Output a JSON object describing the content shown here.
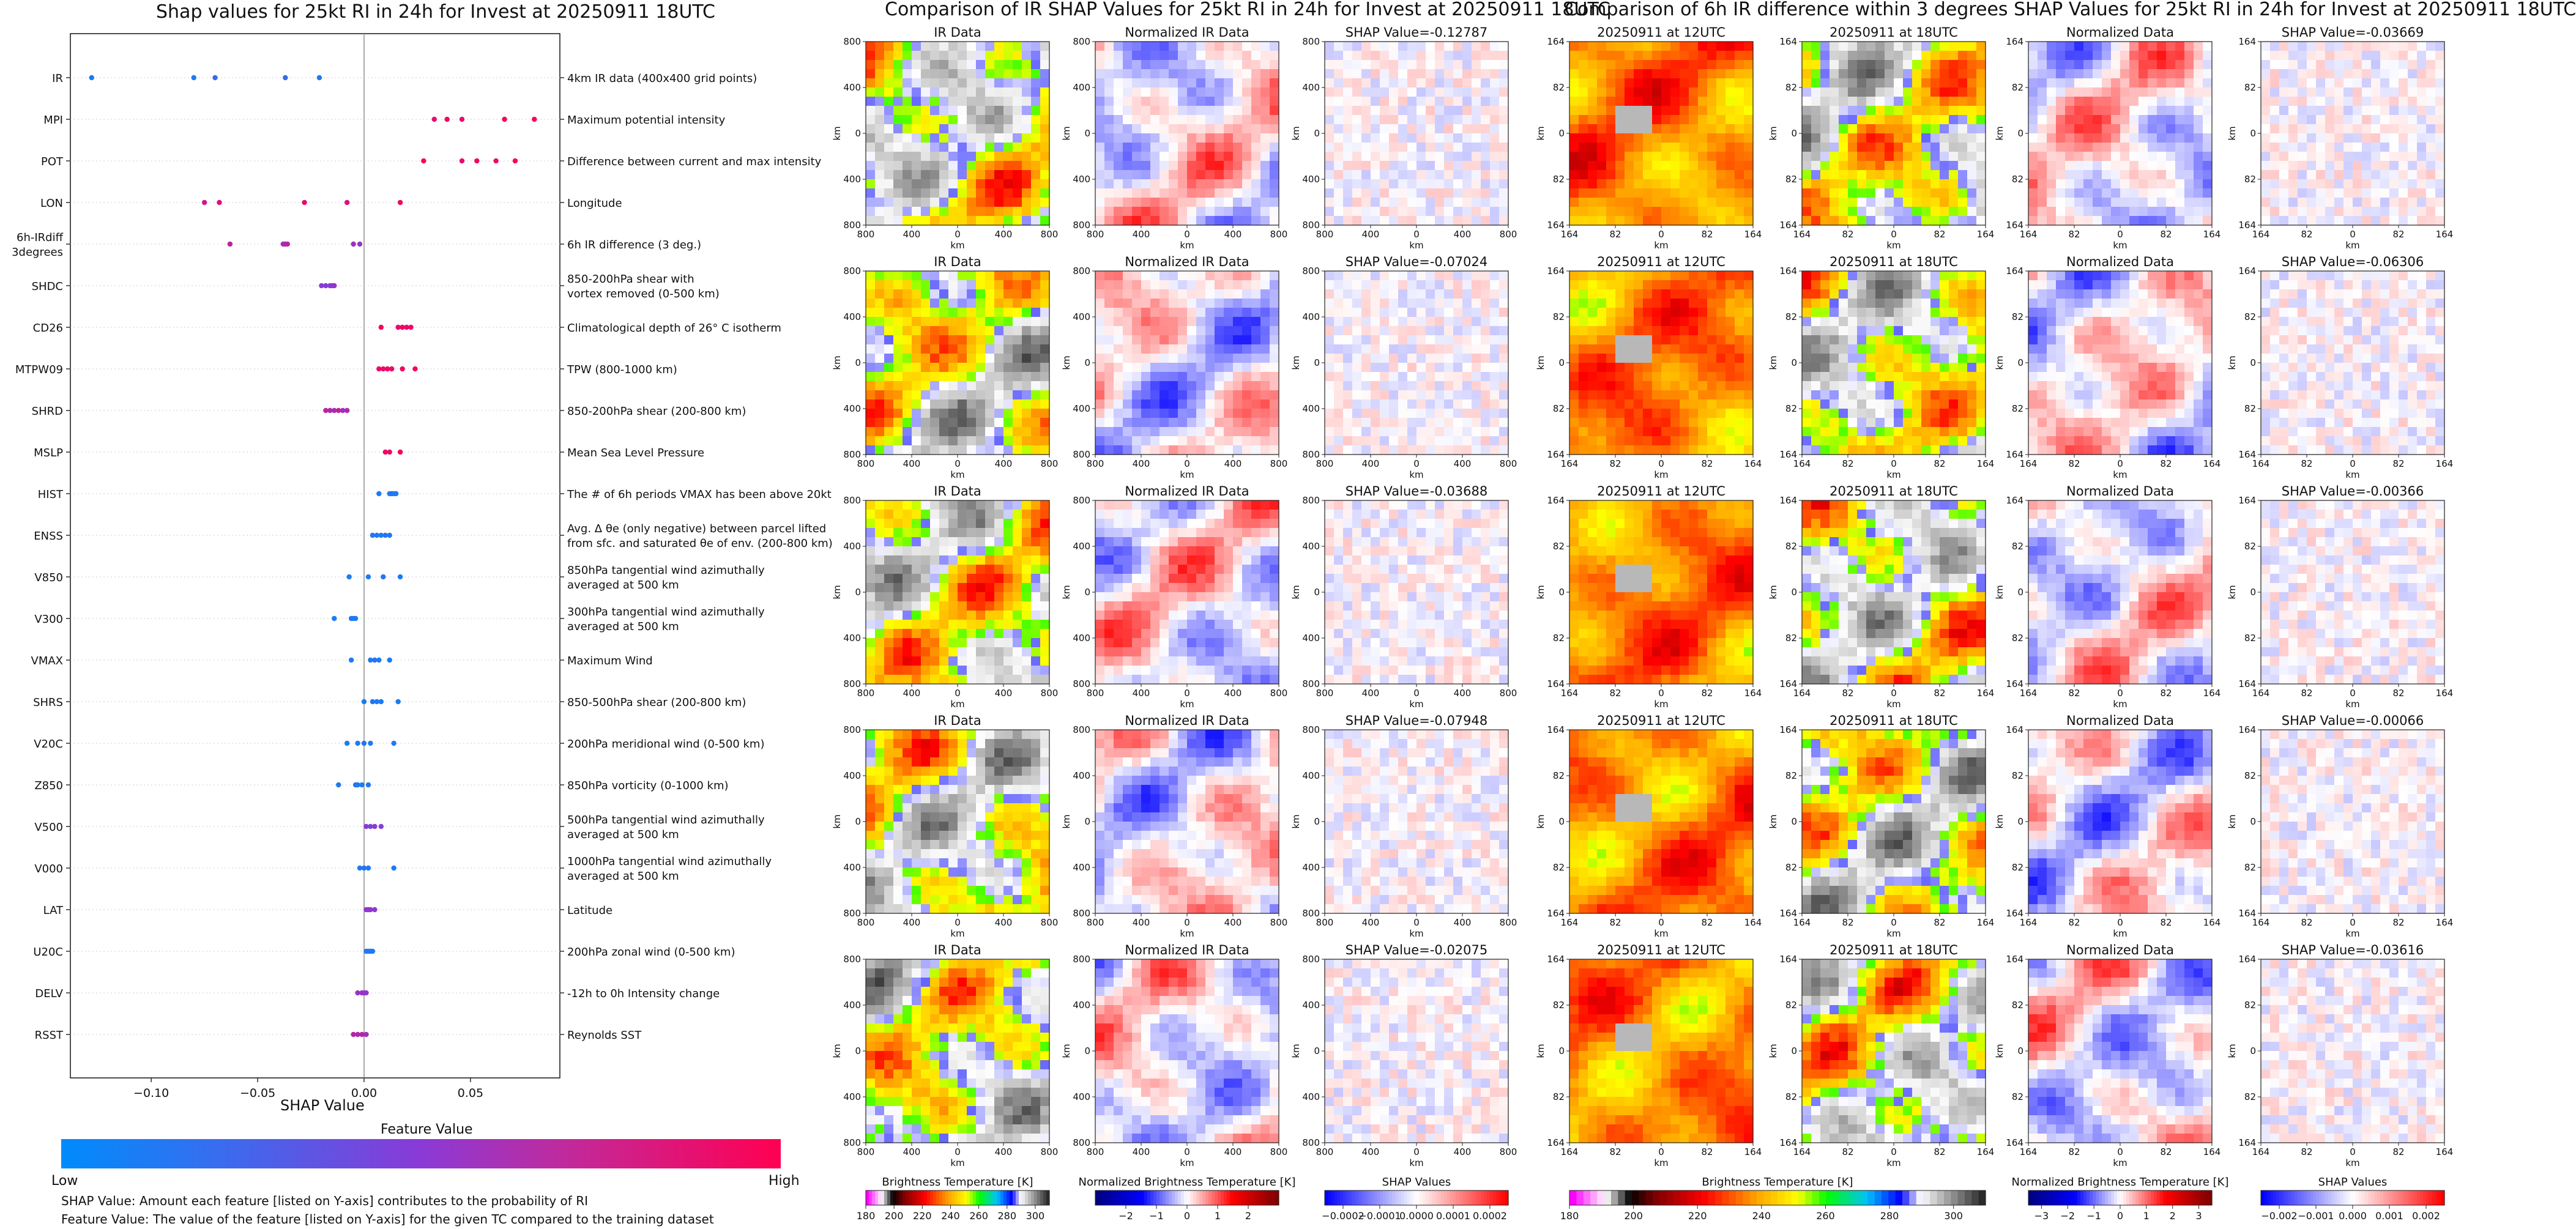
{
  "colors": {
    "low": "#008bfb",
    "mid": "#8a3ad6",
    "high": "#ff0052"
  },
  "shap_panel": {
    "title": "Shap values for 25kt RI in 24h for Invest at 20250911 18UTC",
    "xlabel": "SHAP Value",
    "colorbar_title": "Feature Value",
    "colorbar_low": "Low",
    "colorbar_high": "High",
    "note1": "SHAP Value: Amount each feature [listed on Y-axis] contributes to the probability of RI",
    "note2": "Feature Value: The value of the feature [listed on Y-axis] for the given TC compared to the training dataset"
  },
  "chart_data": [
    {
      "type": "scatter",
      "subtype": "beeswarm",
      "title": "Shap values for 25kt RI in 24h for Invest at 20250911 18UTC",
      "xlabel": "SHAP Value",
      "xlim": [
        -0.138,
        0.092
      ],
      "xticks": [
        -0.1,
        -0.05,
        0.0,
        0.05
      ],
      "xtick_labels": [
        "−0.10",
        "−0.05",
        "0.00",
        "0.05"
      ],
      "features": [
        {
          "name": "IR",
          "desc": "4km IR data (400x400 grid points)",
          "points": [
            [
              -0.128,
              0.1
            ],
            [
              -0.08,
              0.1
            ],
            [
              -0.07,
              0.2
            ],
            [
              -0.037,
              0.2
            ],
            [
              -0.021,
              0.1
            ]
          ]
        },
        {
          "name": "MPI",
          "desc": "Maximum potential intensity",
          "points": [
            [
              0.033,
              0.9
            ],
            [
              0.039,
              0.95
            ],
            [
              0.046,
              0.9
            ],
            [
              0.066,
              0.95
            ],
            [
              0.08,
              1.0
            ]
          ]
        },
        {
          "name": "POT",
          "desc": "Difference between current and max intensity",
          "points": [
            [
              0.028,
              0.95
            ],
            [
              0.046,
              0.9
            ],
            [
              0.053,
              0.95
            ],
            [
              0.062,
              0.9
            ],
            [
              0.071,
              1.0
            ]
          ]
        },
        {
          "name": "LON",
          "desc": "Longitude",
          "points": [
            [
              -0.075,
              0.8
            ],
            [
              -0.068,
              0.85
            ],
            [
              -0.028,
              0.9
            ],
            [
              -0.008,
              0.85
            ],
            [
              0.017,
              0.95
            ]
          ]
        },
        {
          "name": "6h-IRdiff\n3degrees",
          "desc": "6h IR difference (3 deg.)",
          "points": [
            [
              -0.063,
              0.7
            ],
            [
              -0.038,
              0.65
            ],
            [
              -0.037,
              0.65
            ],
            [
              -0.036,
              0.7
            ],
            [
              -0.005,
              0.6
            ],
            [
              -0.002,
              0.55
            ]
          ]
        },
        {
          "name": "SHDC",
          "desc": "850-200hPa shear with\nvortex removed (0-500 km)",
          "points": [
            [
              -0.02,
              0.5
            ],
            [
              -0.018,
              0.5
            ],
            [
              -0.016,
              0.45
            ],
            [
              -0.015,
              0.5
            ],
            [
              -0.014,
              0.55
            ]
          ]
        },
        {
          "name": "CD26",
          "desc": "Climatological depth of 26° C isotherm",
          "points": [
            [
              0.008,
              0.95
            ],
            [
              0.016,
              0.9
            ],
            [
              0.018,
              0.95
            ],
            [
              0.02,
              0.9
            ],
            [
              0.022,
              0.95
            ]
          ]
        },
        {
          "name": "MTPW09",
          "desc": "TPW (800-1000 km)",
          "points": [
            [
              0.007,
              0.95
            ],
            [
              0.009,
              0.9
            ],
            [
              0.011,
              0.95
            ],
            [
              0.013,
              0.9
            ],
            [
              0.018,
              0.95
            ],
            [
              0.024,
              0.95
            ]
          ]
        },
        {
          "name": "SHRD",
          "desc": "850-200hPa shear (200-800 km)",
          "points": [
            [
              -0.018,
              0.7
            ],
            [
              -0.016,
              0.65
            ],
            [
              -0.014,
              0.65
            ],
            [
              -0.012,
              0.7
            ],
            [
              -0.01,
              0.6
            ],
            [
              -0.008,
              0.65
            ]
          ]
        },
        {
          "name": "MSLP",
          "desc": "Mean Sea Level Pressure",
          "points": [
            [
              0.01,
              0.95
            ],
            [
              0.012,
              0.9
            ],
            [
              0.017,
              0.95
            ]
          ]
        },
        {
          "name": "HIST",
          "desc": "The # of 6h periods VMAX has been above 20kt",
          "points": [
            [
              0.007,
              0.1
            ],
            [
              0.012,
              0.1
            ],
            [
              0.013,
              0.15
            ],
            [
              0.014,
              0.1
            ],
            [
              0.015,
              0.1
            ]
          ]
        },
        {
          "name": "ENSS",
          "desc": "Avg. Δ θe (only negative) between parcel lifted\nfrom sfc. and saturated θe of env. (200-800 km)",
          "points": [
            [
              0.004,
              0.15
            ],
            [
              0.006,
              0.1
            ],
            [
              0.008,
              0.1
            ],
            [
              0.01,
              0.15
            ],
            [
              0.012,
              0.1
            ]
          ]
        },
        {
          "name": "V850",
          "desc": "850hPa tangential wind azimuthally\naveraged at 500 km",
          "points": [
            [
              -0.007,
              0.1
            ],
            [
              0.002,
              0.1
            ],
            [
              0.009,
              0.15
            ],
            [
              0.017,
              0.1
            ]
          ]
        },
        {
          "name": "V300",
          "desc": "300hPa tangential wind azimuthally\naveraged at 500 km",
          "points": [
            [
              -0.014,
              0.1
            ],
            [
              -0.006,
              0.15
            ],
            [
              -0.005,
              0.1
            ],
            [
              -0.004,
              0.1
            ]
          ]
        },
        {
          "name": "VMAX",
          "desc": "Maximum Wind",
          "points": [
            [
              -0.006,
              0.1
            ],
            [
              0.003,
              0.1
            ],
            [
              0.005,
              0.15
            ],
            [
              0.007,
              0.1
            ],
            [
              0.012,
              0.1
            ]
          ]
        },
        {
          "name": "SHRS",
          "desc": "850-500hPa shear (200-800 km)",
          "points": [
            [
              0.0,
              0.1
            ],
            [
              0.004,
              0.15
            ],
            [
              0.006,
              0.1
            ],
            [
              0.008,
              0.1
            ],
            [
              0.016,
              0.1
            ]
          ]
        },
        {
          "name": "V20C",
          "desc": "200hPa meridional wind (0-500 km)",
          "points": [
            [
              -0.008,
              0.1
            ],
            [
              -0.003,
              0.1
            ],
            [
              0.0,
              0.15
            ],
            [
              0.003,
              0.1
            ],
            [
              0.014,
              0.1
            ]
          ]
        },
        {
          "name": "Z850",
          "desc": "850hPa vorticity (0-1000 km)",
          "points": [
            [
              -0.012,
              0.1
            ],
            [
              -0.004,
              0.15
            ],
            [
              -0.003,
              0.1
            ],
            [
              -0.001,
              0.1
            ],
            [
              0.002,
              0.15
            ]
          ]
        },
        {
          "name": "V500",
          "desc": "500hPa tangential wind azimuthally\naveraged at 500 km",
          "points": [
            [
              0.001,
              0.5
            ],
            [
              0.003,
              0.45
            ],
            [
              0.005,
              0.5
            ],
            [
              0.008,
              0.45
            ]
          ]
        },
        {
          "name": "V000",
          "desc": "1000hPa tangential wind azimuthally\naveraged at 500 km",
          "points": [
            [
              -0.002,
              0.1
            ],
            [
              0.0,
              0.15
            ],
            [
              0.002,
              0.1
            ],
            [
              0.014,
              0.1
            ]
          ]
        },
        {
          "name": "LAT",
          "desc": "Latitude",
          "points": [
            [
              0.001,
              0.55
            ],
            [
              0.002,
              0.5
            ],
            [
              0.003,
              0.55
            ],
            [
              0.005,
              0.5
            ]
          ]
        },
        {
          "name": "U20C",
          "desc": "200hPa zonal wind (0-500 km)",
          "points": [
            [
              0.001,
              0.1
            ],
            [
              0.002,
              0.15
            ],
            [
              0.003,
              0.1
            ],
            [
              0.004,
              0.1
            ]
          ]
        },
        {
          "name": "DELV",
          "desc": "-12h to 0h Intensity change",
          "points": [
            [
              -0.003,
              0.55
            ],
            [
              -0.001,
              0.6
            ],
            [
              0.0,
              0.5
            ],
            [
              0.001,
              0.55
            ]
          ]
        },
        {
          "name": "RSST",
          "desc": "Reynolds SST",
          "points": [
            [
              -0.005,
              0.7
            ],
            [
              -0.003,
              0.65
            ],
            [
              -0.001,
              0.7
            ],
            [
              0.001,
              0.6
            ]
          ]
        }
      ]
    },
    {
      "type": "heatmap",
      "title": "Comparison of IR SHAP Values for 25kt RI in 24h for Invest at 20250911 18UTC",
      "axes_label": "km",
      "tick_labels": [
        "800",
        "400",
        "0",
        "400",
        "800"
      ],
      "columns": [
        "IR Data",
        "Normalized IR Data"
      ],
      "rows": [
        {
          "shap": "SHAP Value=-0.12787"
        },
        {
          "shap": "SHAP Value=-0.07024"
        },
        {
          "shap": "SHAP Value=-0.03688"
        },
        {
          "shap": "SHAP Value=-0.07948"
        },
        {
          "shap": "SHAP Value=-0.02075"
        }
      ],
      "colorbars": [
        {
          "label": "Brightness Temperature [K]",
          "ticks": [
            "180",
            "200",
            "220",
            "240",
            "260",
            "280",
            "300"
          ],
          "range": [
            180,
            310
          ]
        },
        {
          "label": "Normalized Brightness Temperature [K]",
          "ticks": [
            "−2",
            "−1",
            "0",
            "1",
            "2"
          ],
          "range": [
            -3,
            3
          ]
        },
        {
          "label": "SHAP Values",
          "ticks": [
            "−0.0002",
            "−0.0001",
            "0.0000",
            "0.0001",
            "0.0002"
          ],
          "range": [
            -0.00025,
            0.00025
          ]
        }
      ]
    },
    {
      "type": "heatmap",
      "title": "Comparison of 6h IR difference within 3 degrees SHAP Values for 25kt RI in 24h for Invest at 20250911 18UTC",
      "axes_label": "km",
      "tick_labels": [
        "164",
        "82",
        "0",
        "82",
        "164"
      ],
      "columns": [
        "20250911 at 12UTC",
        "20250911 at 18UTC",
        "Normalized Data"
      ],
      "rows": [
        {
          "shap": "SHAP Value=-0.03669"
        },
        {
          "shap": "SHAP Value=-0.06306"
        },
        {
          "shap": "SHAP Value=-0.00366"
        },
        {
          "shap": "SHAP Value=-0.00066"
        },
        {
          "shap": "SHAP Value=-0.03616"
        }
      ],
      "colorbars": [
        {
          "label": "Brightness Temperature [K]",
          "ticks": [
            "180",
            "200",
            "220",
            "240",
            "260",
            "280",
            "300"
          ],
          "range": [
            180,
            310
          ]
        },
        {
          "label": "Normalized Brightness Temperature [K]",
          "ticks": [
            "−3",
            "−2",
            "−1",
            "0",
            "1",
            "2",
            "3"
          ],
          "range": [
            -3.5,
            3.5
          ]
        },
        {
          "label": "SHAP Values",
          "ticks": [
            "−0.002",
            "−0.001",
            "0.000",
            "0.001",
            "0.002"
          ],
          "range": [
            -0.0025,
            0.0025
          ]
        }
      ]
    }
  ]
}
